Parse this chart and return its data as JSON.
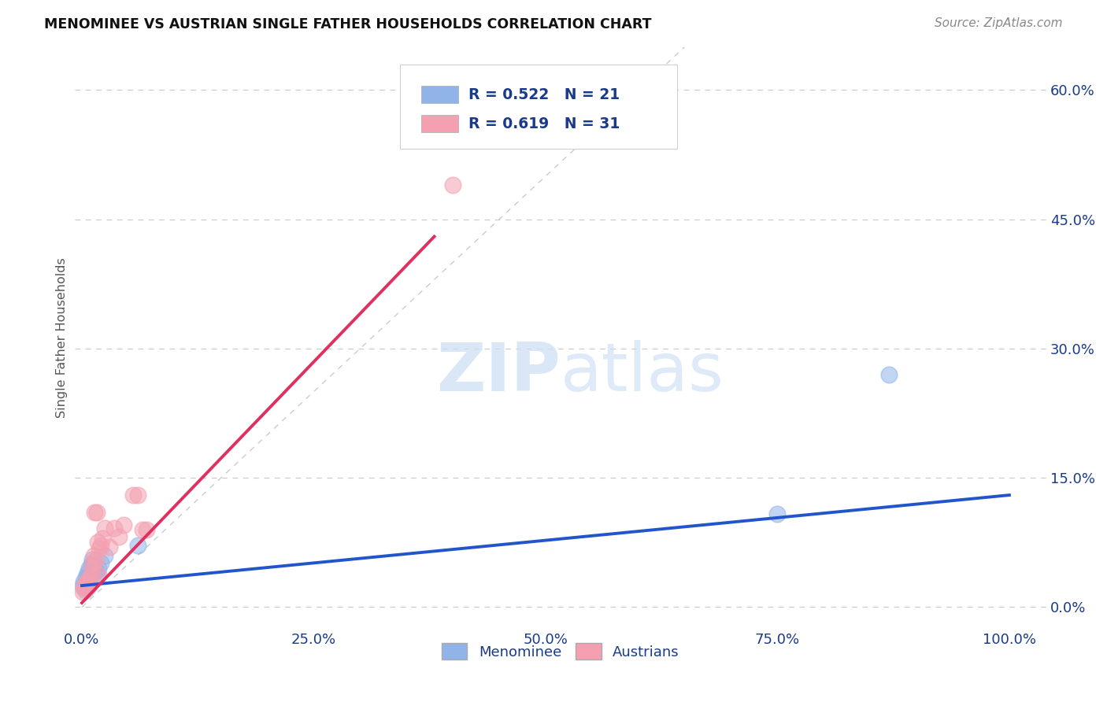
{
  "title": "MENOMINEE VS AUSTRIAN SINGLE FATHER HOUSEHOLDS CORRELATION CHART",
  "source": "Source: ZipAtlas.com",
  "xlabel_ticks": [
    "0.0%",
    "25.0%",
    "50.0%",
    "75.0%",
    "100.0%"
  ],
  "xlabel_vals": [
    0.0,
    0.25,
    0.5,
    0.75,
    1.0
  ],
  "ylabel_ticks": [
    "0.0%",
    "15.0%",
    "30.0%",
    "45.0%",
    "60.0%"
  ],
  "ylabel_vals": [
    0.0,
    0.15,
    0.3,
    0.45,
    0.6
  ],
  "ylabel_label": "Single Father Households",
  "menominee_R": 0.522,
  "menominee_N": 21,
  "austrian_R": 0.619,
  "austrian_N": 31,
  "menominee_color": "#91b4e8",
  "austrian_color": "#f4a0b0",
  "menominee_line_color": "#2255cc",
  "austrian_line_color": "#e03060",
  "diagonal_color": "#cccccc",
  "menominee_x": [
    0.001,
    0.002,
    0.003,
    0.004,
    0.005,
    0.006,
    0.007,
    0.008,
    0.009,
    0.01,
    0.011,
    0.012,
    0.013,
    0.015,
    0.016,
    0.018,
    0.02,
    0.025,
    0.06,
    0.75,
    0.87
  ],
  "menominee_y": [
    0.025,
    0.03,
    0.02,
    0.035,
    0.028,
    0.04,
    0.035,
    0.045,
    0.038,
    0.05,
    0.055,
    0.048,
    0.04,
    0.042,
    0.038,
    0.045,
    0.052,
    0.06,
    0.072,
    0.108,
    0.27
  ],
  "austrian_x": [
    0.001,
    0.002,
    0.003,
    0.004,
    0.005,
    0.006,
    0.007,
    0.008,
    0.009,
    0.01,
    0.011,
    0.012,
    0.013,
    0.014,
    0.015,
    0.016,
    0.017,
    0.018,
    0.019,
    0.02,
    0.022,
    0.025,
    0.03,
    0.035,
    0.04,
    0.045,
    0.055,
    0.06,
    0.065,
    0.07,
    0.4
  ],
  "austrian_y": [
    0.018,
    0.022,
    0.025,
    0.028,
    0.022,
    0.028,
    0.032,
    0.025,
    0.03,
    0.038,
    0.045,
    0.052,
    0.06,
    0.11,
    0.055,
    0.11,
    0.075,
    0.038,
    0.068,
    0.072,
    0.08,
    0.092,
    0.07,
    0.092,
    0.082,
    0.095,
    0.13,
    0.13,
    0.09,
    0.09,
    0.49
  ],
  "menominee_line_x": [
    0.0,
    1.0
  ],
  "menominee_line_y": [
    0.025,
    0.13
  ],
  "austrian_line_x": [
    0.0,
    0.38
  ],
  "austrian_line_y": [
    0.005,
    0.43
  ],
  "watermark_zip": "ZIP",
  "watermark_atlas": "atlas",
  "legend_text_color": "#1a3a8a",
  "background_color": "#ffffff",
  "grid_color": "#c8c8c8",
  "xlim": [
    -0.008,
    1.04
  ],
  "ylim": [
    -0.025,
    0.65
  ]
}
